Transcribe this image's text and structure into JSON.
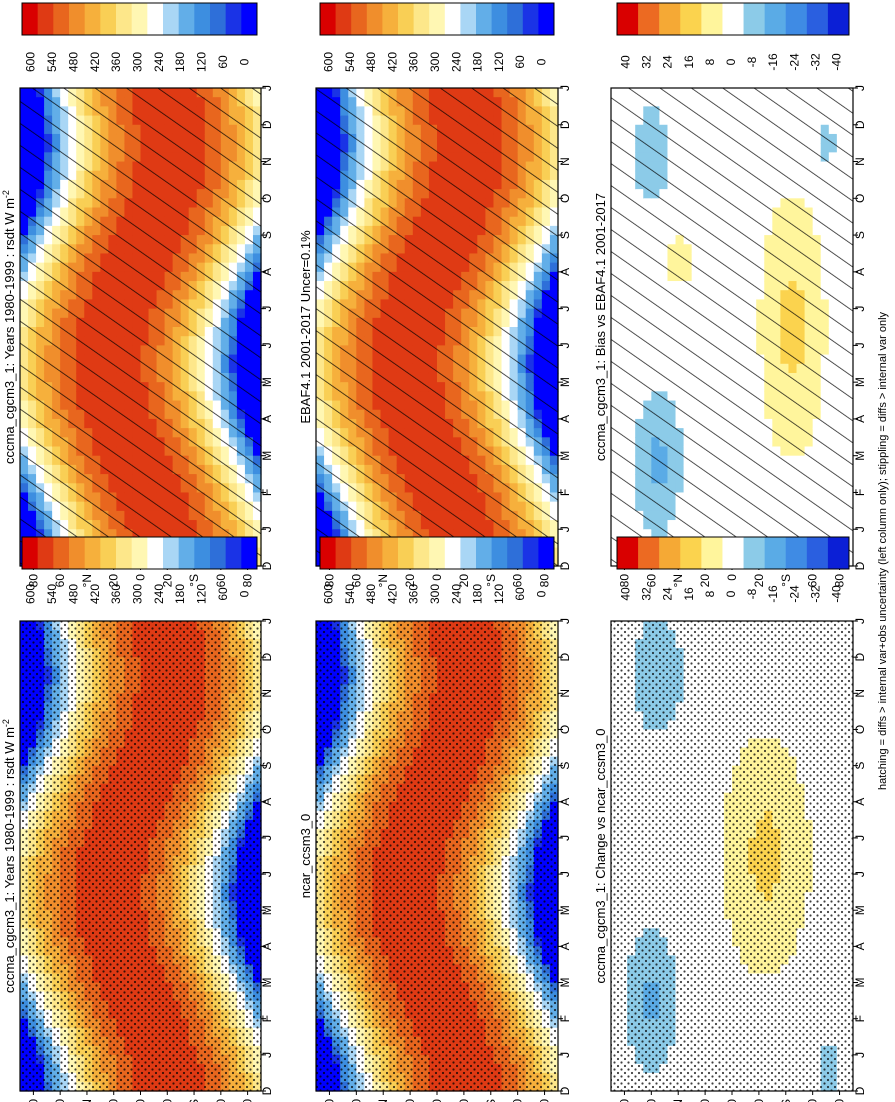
{
  "footnote": "hatching = diffs > internal var+obs uncertainty (left column only); stippling = diffs > internal var only",
  "chart_data": [
    {
      "type": "heatmap",
      "panel": "left-top",
      "title": "cccma_cgcm3_1: Years 1980-1999 : rsdt W m",
      "title_exponent": "-2",
      "field": "annual",
      "overlay": "hatching",
      "colorbar_ticks": [
        "600",
        "540",
        "480",
        "420",
        "360",
        "300",
        "240",
        "180",
        "120",
        "60",
        "0"
      ],
      "vmin": 0,
      "vmax": 600
    },
    {
      "type": "heatmap",
      "panel": "right-top",
      "title": "cccma_cgcm3_1: Years 1980-1999 : rsdt W m",
      "title_exponent": "-2",
      "field": "annual",
      "overlay": "stipple",
      "colorbar_ticks": [
        "600",
        "540",
        "480",
        "420",
        "360",
        "300",
        "240",
        "180",
        "120",
        "60",
        "0"
      ],
      "vmin": 0,
      "vmax": 600
    },
    {
      "type": "heatmap",
      "panel": "left-middle",
      "title": "EBAF4.1 2001-2017 Uncer=0.1%",
      "title_exponent": "",
      "field": "annual",
      "overlay": "hatching",
      "colorbar_ticks": [
        "600",
        "540",
        "480",
        "420",
        "360",
        "300",
        "240",
        "180",
        "120",
        "60",
        "0"
      ],
      "vmin": 0,
      "vmax": 600
    },
    {
      "type": "heatmap",
      "panel": "right-middle",
      "title": "ncar_ccsm3_0",
      "title_exponent": "",
      "field": "annual",
      "overlay": "stipple",
      "colorbar_ticks": [
        "600",
        "540",
        "480",
        "420",
        "360",
        "300",
        "240",
        "180",
        "120",
        "60",
        "0"
      ],
      "vmin": 0,
      "vmax": 600
    },
    {
      "type": "heatmap",
      "panel": "left-bottom",
      "title": "cccma_cgcm3_1: Bias vs EBAF4.1 2001-2017",
      "title_exponent": "",
      "field": "bias",
      "overlay": "hatching",
      "colorbar_ticks": [
        "40",
        "32",
        "24",
        "16",
        "8",
        "0",
        "-8",
        "-16",
        "-24",
        "-32",
        "-40"
      ],
      "vmin": -44,
      "vmax": 44
    },
    {
      "type": "heatmap",
      "panel": "right-bottom",
      "title": "cccma_cgcm3_1: Change vs ncar_ccsm3_0",
      "title_exponent": "",
      "field": "change",
      "overlay": "stipple",
      "colorbar_ticks": [
        "40",
        "32",
        "24",
        "16",
        "8",
        "0",
        "-8",
        "-16",
        "-24",
        "-32",
        "-40"
      ],
      "vmin": -44,
      "vmax": 44
    }
  ],
  "axes": {
    "month_labels": [
      "D",
      "J",
      "F",
      "M",
      "A",
      "M",
      "J",
      "J",
      "A",
      "S",
      "O",
      "N",
      "D",
      "J"
    ],
    "lat_labels": [
      "80",
      "60",
      "°N",
      "20",
      "0",
      "20",
      "°S",
      "60",
      "80"
    ]
  },
  "palettes": {
    "annual": [
      "#0000ff",
      "#1a33e6",
      "#2e6fd9",
      "#3d8ee0",
      "#62aee8",
      "#a9d6f5",
      "#ffffff",
      "#fff7b3",
      "#fde78a",
      "#f9cf55",
      "#f6b03c",
      "#f08e2c",
      "#e8661e",
      "#df3a14",
      "#d90000"
    ],
    "diff": [
      "#0b1fd6",
      "#2a5fe0",
      "#3f8be4",
      "#5aabe6",
      "#8ccbe8",
      "#ffffff",
      "#fff59c",
      "#fbd34e",
      "#f5a935",
      "#ec6a22",
      "#d90000"
    ]
  }
}
